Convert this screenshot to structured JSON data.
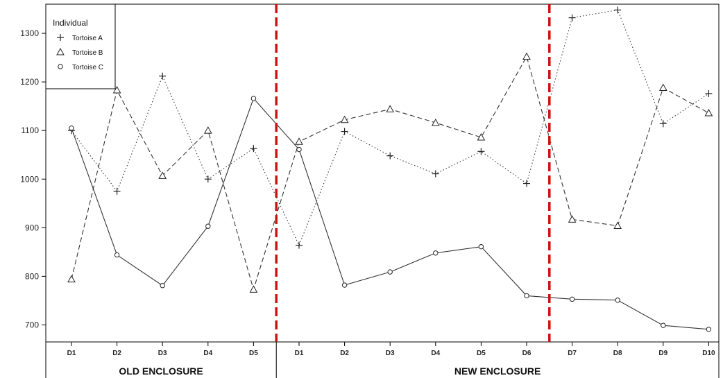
{
  "chart_data": {
    "type": "line",
    "categories": [
      "D1",
      "D2",
      "D3",
      "D4",
      "D5",
      "D1",
      "D2",
      "D3",
      "D4",
      "D5",
      "D6",
      "D7",
      "D8",
      "D9",
      "D10"
    ],
    "groups": [
      {
        "label": "OLD ENCLOSURE",
        "start": 0,
        "end": 4
      },
      {
        "label": "NEW ENCLOSURE",
        "start": 5,
        "end": 14
      }
    ],
    "ylim": [
      665,
      1360
    ],
    "yticks": [
      700,
      800,
      900,
      1000,
      1100,
      1200,
      1300
    ],
    "ytick_labels": [
      "700",
      "800",
      "900",
      "1000",
      "1100",
      "1200",
      "1300"
    ],
    "vlines_after_index": [
      4,
      10
    ],
    "vline_color": "#cc1111",
    "legend": {
      "title": "Individual",
      "position": "top-left"
    },
    "series": [
      {
        "name": "Tortoise A",
        "marker": "plus",
        "line_style": "dotted",
        "values": [
          1100,
          975,
          1212,
          1000,
          1063,
          864,
          1098,
          1048,
          1011,
          1057,
          991,
          1332,
          1348,
          1114,
          1176
        ]
      },
      {
        "name": "Tortoise B",
        "marker": "triangle",
        "line_style": "dashed",
        "values": [
          794,
          1183,
          1007,
          1100,
          773,
          1077,
          1122,
          1144,
          1116,
          1086,
          1252,
          917,
          904,
          1188,
          1136
        ]
      },
      {
        "name": "Tortoise C",
        "marker": "circle",
        "line_style": "solid",
        "values": [
          1105,
          844,
          781,
          903,
          1166,
          1061,
          782,
          809,
          848,
          861,
          760,
          753,
          751,
          699,
          691
        ]
      }
    ]
  }
}
